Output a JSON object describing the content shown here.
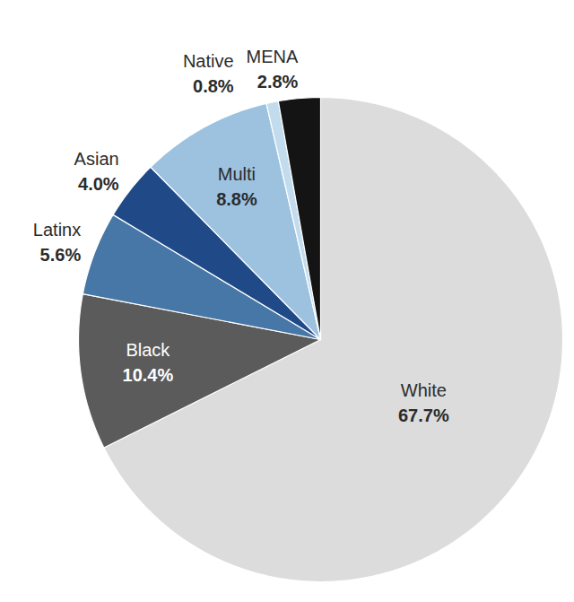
{
  "chart_data": {
    "type": "pie",
    "categories": [
      "White",
      "Black",
      "Latinx",
      "Asian",
      "Multi",
      "Native",
      "MENA"
    ],
    "values": [
      67.7,
      10.4,
      5.6,
      4.0,
      8.8,
      0.8,
      2.8
    ],
    "value_labels": [
      "67.7%",
      "10.4%",
      "5.6%",
      "4.0%",
      "8.8%",
      "0.8%",
      "2.8%"
    ],
    "colors": [
      "#dcdcdc",
      "#5b5b5b",
      "#4677a6",
      "#1f4a87",
      "#9cc2e0",
      "#c2dcee",
      "#141414"
    ],
    "data_labels": true
  }
}
